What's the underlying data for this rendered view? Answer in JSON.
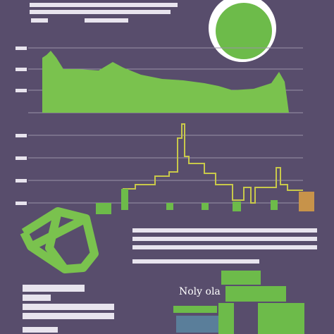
{
  "caption": {
    "text": "Noly ola"
  }
}
